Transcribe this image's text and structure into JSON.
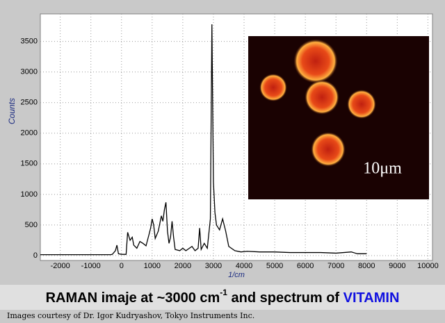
{
  "chart_data": {
    "type": "line",
    "x_label": "1/cm",
    "y_label": "Counts",
    "xlim": [
      -2650,
      10150
    ],
    "ylim": [
      -80,
      3950
    ],
    "xticks": [
      -2000,
      -1000,
      0,
      1000,
      2000,
      3000,
      4000,
      5000,
      6000,
      7000,
      8000,
      9000,
      10000
    ],
    "yticks": [
      0,
      500,
      1000,
      1500,
      2000,
      2500,
      3000,
      3500
    ],
    "grid": true,
    "series": [
      {
        "color": "#000000",
        "x": [
          -2650,
          -350,
          -300,
          -200,
          -150,
          -100,
          0,
          150,
          200,
          280,
          350,
          400,
          500,
          600,
          700,
          800,
          900,
          950,
          1000,
          1050,
          1100,
          1200,
          1300,
          1350,
          1400,
          1450,
          1500,
          1550,
          1600,
          1650,
          1700,
          1750,
          1900,
          2000,
          2100,
          2300,
          2400,
          2500,
          2550,
          2600,
          2700,
          2800,
          2900,
          2950,
          3000,
          3050,
          3100,
          3200,
          3300,
          3400,
          3500,
          3700,
          3900,
          4100,
          4500,
          5000,
          5500,
          6000,
          6500,
          7000,
          7500,
          7700,
          8000
        ],
        "values": [
          15,
          15,
          20,
          80,
          170,
          30,
          20,
          20,
          380,
          250,
          300,
          170,
          120,
          230,
          200,
          160,
          350,
          450,
          600,
          500,
          280,
          400,
          650,
          560,
          750,
          870,
          400,
          200,
          300,
          560,
          300,
          100,
          80,
          120,
          80,
          150,
          80,
          120,
          450,
          100,
          200,
          120,
          600,
          3780,
          1200,
          700,
          500,
          420,
          600,
          400,
          150,
          80,
          60,
          70,
          60,
          60,
          50,
          50,
          50,
          40,
          60,
          30,
          30
        ]
      }
    ],
    "inset_label": "10μm",
    "caption": {
      "part1": "RAMAN imaje at ~3000 cm",
      "superscript": "-1",
      "part2": " and spectrum of ",
      "highlight": "VITAMIN"
    },
    "credit": "Images courtesy of Dr. Igor Kudryashov, Tokyo Instruments Inc."
  }
}
